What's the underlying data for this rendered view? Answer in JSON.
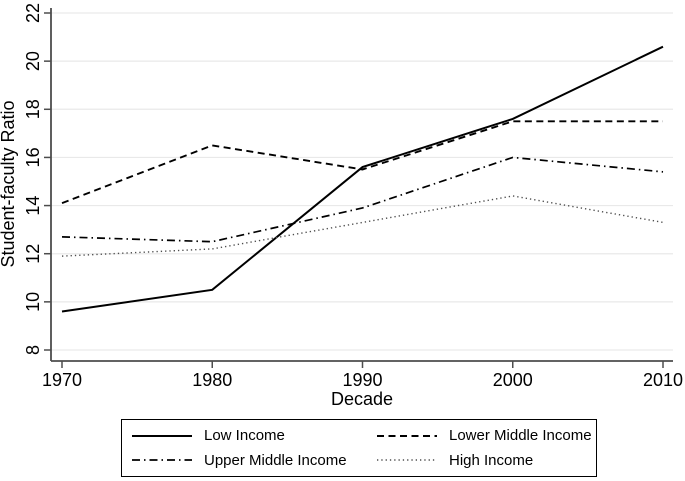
{
  "chart_data": {
    "type": "line",
    "title": "",
    "xlabel": "Decade",
    "ylabel": "Student-faculty Ratio",
    "x": [
      1970,
      1980,
      1990,
      2000,
      2010
    ],
    "series": [
      {
        "name": "Low Income",
        "style": "solid",
        "values": [
          9.6,
          10.5,
          15.6,
          17.6,
          20.6
        ]
      },
      {
        "name": "Lower Middle Income",
        "style": "dash",
        "values": [
          14.1,
          16.5,
          15.5,
          17.5,
          17.5
        ]
      },
      {
        "name": "Upper Middle Income",
        "style": "dash-dot",
        "values": [
          12.7,
          12.5,
          13.9,
          16.0,
          15.4
        ]
      },
      {
        "name": "High Income",
        "style": "dot",
        "values": [
          11.9,
          12.2,
          13.3,
          14.4,
          13.3
        ]
      }
    ],
    "xlim": [
      1970,
      2010
    ],
    "ylim": [
      8,
      22
    ],
    "x_ticks": [
      1970,
      1980,
      1990,
      2000,
      2010
    ],
    "y_ticks": [
      8,
      10,
      12,
      14,
      16,
      18,
      20,
      22
    ],
    "y_tick_label_rotation": 90,
    "grid": "horizontal",
    "legend_position": "bottom"
  },
  "legend": {
    "entries": [
      {
        "label": "Low Income",
        "style": "solid"
      },
      {
        "label": "Lower Middle Income",
        "style": "dash"
      },
      {
        "label": "Upper Middle Income",
        "style": "dash-dot"
      },
      {
        "label": "High Income",
        "style": "dot"
      }
    ]
  },
  "colors": {
    "line": "#000000",
    "dotted_line": "#4d4d4d",
    "grid": "#e9e9e9",
    "axis": "#4d4d4d",
    "background": "#ffffff"
  }
}
